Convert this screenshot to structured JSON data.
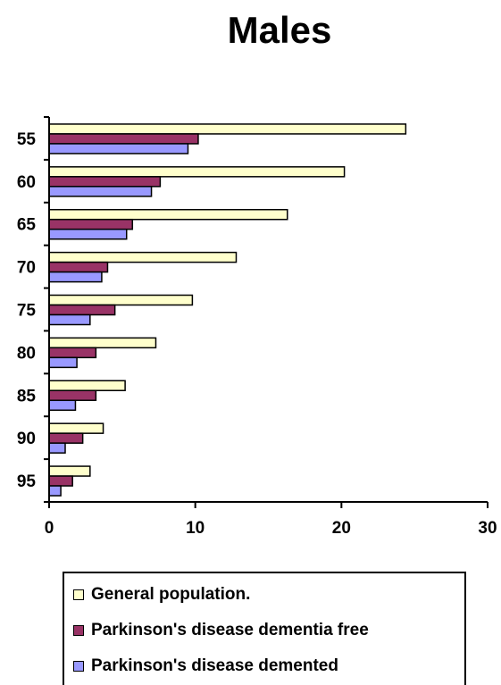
{
  "chart_data": {
    "type": "bar",
    "orientation": "horizontal",
    "title": "Males",
    "categories": [
      "55",
      "60",
      "65",
      "70",
      "75",
      "80",
      "85",
      "90",
      "95"
    ],
    "series": [
      {
        "name": "General population.",
        "color": "#ffffcc",
        "values": [
          24.4,
          20.2,
          16.3,
          12.8,
          9.8,
          7.3,
          5.2,
          3.7,
          2.8
        ]
      },
      {
        "name": "Parkinson's disease dementia free",
        "color": "#993366",
        "values": [
          10.2,
          7.6,
          5.7,
          4.0,
          4.5,
          3.2,
          3.2,
          2.3,
          1.6
        ]
      },
      {
        "name": "Parkinson's disease demented",
        "color": "#9999ff",
        "values": [
          9.5,
          7.0,
          5.3,
          3.6,
          2.8,
          1.9,
          1.8,
          1.1,
          0.8
        ]
      }
    ],
    "xlim": [
      0,
      30
    ],
    "x_ticks": [
      "0",
      "10",
      "20",
      "30"
    ],
    "xlabel": "",
    "ylabel": "",
    "grid": false,
    "legend_position": "bottom"
  }
}
